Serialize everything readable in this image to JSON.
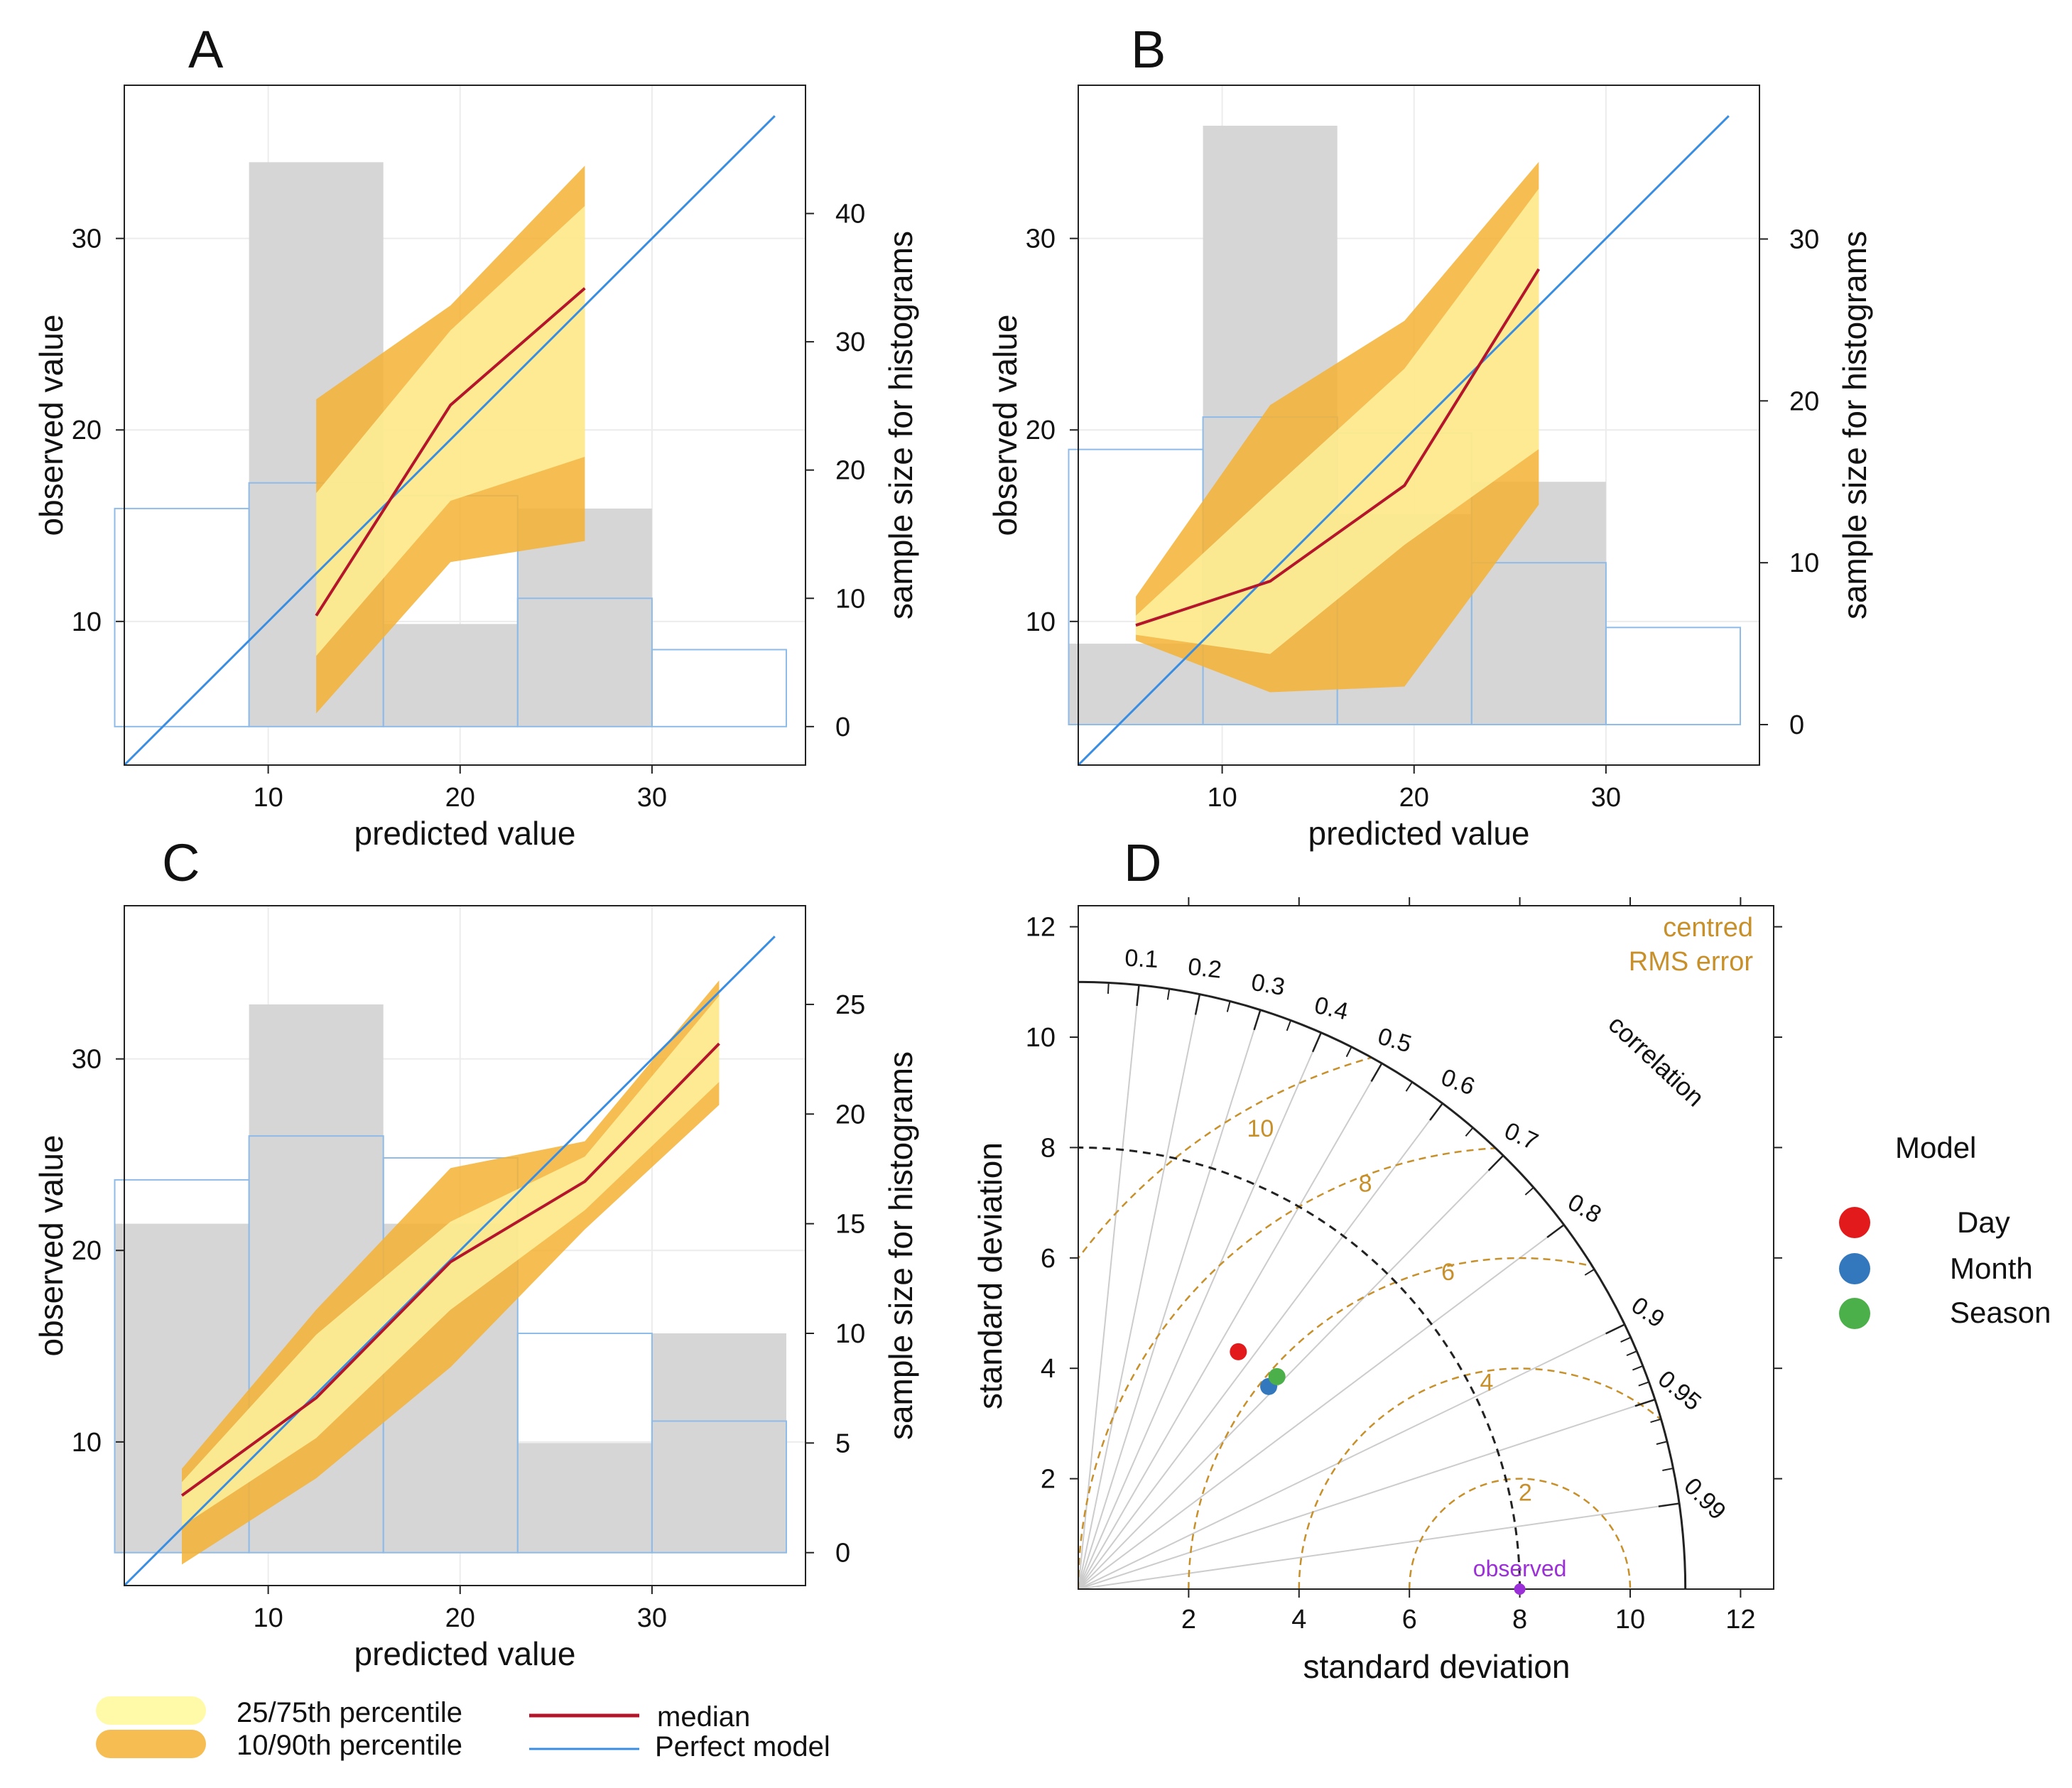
{
  "colors": {
    "band_inner": "#fffaa8",
    "band_outer": "#f5b234",
    "median": "#b5152b",
    "perfect": "#3a8ee2",
    "hist_fill": "#d6d6d6",
    "hist_outline": "#8fbbe8",
    "grid": "#ececec",
    "rms": "#c7902a",
    "correlation_line": "#cccccc",
    "observed": "#9b30d8",
    "day": "#e31a1c",
    "month": "#3378bd",
    "season": "#4cb04a"
  },
  "chart_data": [
    {
      "panel": "A",
      "type": "area",
      "xlabel": "predicted value",
      "ylabel": "observed value",
      "y2label": "sample size for histograms",
      "xlim": [
        2.5,
        38
      ],
      "ylim": [
        2.5,
        38
      ],
      "xticks": [
        10,
        20,
        30
      ],
      "yticks": [
        10,
        20,
        30
      ],
      "y2ticks": [
        0,
        10,
        20,
        30,
        40
      ],
      "y2lim": [
        -3,
        50
      ],
      "bins": [
        2,
        9,
        16,
        23,
        30,
        37
      ],
      "hist_grey": [
        0,
        44,
        8,
        17,
        0
      ],
      "hist_outline": [
        17,
        19,
        18,
        10,
        6
      ],
      "x": [
        12.5,
        19.5,
        26.5
      ],
      "p10": [
        5.2,
        13.1,
        14.2
      ],
      "p25": [
        8.2,
        16.3,
        18.6
      ],
      "median": [
        10.3,
        21.3,
        27.4
      ],
      "p75": [
        16.7,
        25.2,
        31.7
      ],
      "p90": [
        21.6,
        26.5,
        33.8
      ],
      "perfect_model": [
        2.5,
        36.4
      ]
    },
    {
      "panel": "B",
      "type": "area",
      "xlabel": "predicted value",
      "ylabel": "observed value",
      "y2label": "sample size for histograms",
      "xlim": [
        2.5,
        38
      ],
      "ylim": [
        2.5,
        38
      ],
      "xticks": [
        10,
        20,
        30
      ],
      "yticks": [
        10,
        20,
        30
      ],
      "y2ticks": [
        0,
        10,
        20,
        30
      ],
      "y2lim": [
        -2.5,
        39.5
      ],
      "bins": [
        2,
        9,
        16,
        23,
        30,
        37
      ],
      "hist_grey": [
        5,
        37,
        13,
        15,
        0
      ],
      "hist_outline": [
        17,
        19,
        18,
        10,
        6
      ],
      "x": [
        5.5,
        12.5,
        19.5,
        26.5
      ],
      "p10": [
        9.0,
        6.3,
        6.6,
        16.1
      ],
      "p25": [
        9.3,
        8.3,
        14.0,
        19.0
      ],
      "median": [
        9.8,
        12.1,
        17.1,
        28.4
      ],
      "p75": [
        10.3,
        16.8,
        23.2,
        32.6
      ],
      "p90": [
        11.3,
        21.3,
        25.7,
        34.0
      ],
      "perfect_model": [
        2.5,
        36.4
      ]
    },
    {
      "panel": "C",
      "type": "area",
      "xlabel": "predicted value",
      "ylabel": "observed value",
      "y2label": "sample size for histograms",
      "xlim": [
        2.5,
        38
      ],
      "ylim": [
        2.5,
        38
      ],
      "xticks": [
        10,
        20,
        30
      ],
      "yticks": [
        10,
        20,
        30
      ],
      "y2ticks": [
        0,
        5,
        10,
        15,
        20,
        25
      ],
      "y2lim": [
        -1.5,
        29.5
      ],
      "bins": [
        2,
        9,
        16,
        23,
        30,
        37
      ],
      "hist_grey": [
        15,
        25,
        15,
        5,
        10
      ],
      "hist_outline": [
        17,
        19,
        18,
        10,
        6
      ],
      "x": [
        5.5,
        12.5,
        19.5,
        26.5,
        33.5
      ],
      "p10": [
        3.6,
        8.1,
        13.9,
        21.1,
        27.6
      ],
      "p25": [
        5.6,
        10.2,
        16.9,
        22.1,
        28.8
      ],
      "median": [
        7.2,
        12.3,
        19.4,
        23.6,
        30.8
      ],
      "p75": [
        7.9,
        15.6,
        21.5,
        24.9,
        33.3
      ],
      "p90": [
        8.6,
        16.9,
        24.3,
        25.7,
        34.1
      ],
      "perfect_model": [
        2.5,
        36.4
      ]
    },
    {
      "panel": "D",
      "type": "scatter",
      "subtype": "taylor-diagram",
      "xlabel": "standard deviation",
      "ylabel": "standard deviation",
      "xlim": [
        0,
        12.6
      ],
      "ylim": [
        0,
        12.3
      ],
      "xticks": [
        2,
        4,
        6,
        8,
        10,
        12
      ],
      "yticks": [
        2,
        4,
        6,
        8,
        10,
        12
      ],
      "max_sd": 11,
      "observed_sd": 8,
      "correlation_labels": [
        "0.1",
        "0.2",
        "0.3",
        "0.4",
        "0.5",
        "0.6",
        "0.7",
        "0.8",
        "0.9",
        "0.95",
        "0.99"
      ],
      "correlation_lines": [
        0.1,
        0.2,
        0.3,
        0.4,
        0.5,
        0.6,
        0.7,
        0.8,
        0.9,
        0.95,
        0.99
      ],
      "rms_contours": [
        2,
        4,
        6,
        8,
        10
      ],
      "rms_labels": [
        "2",
        "4",
        "6",
        "8",
        "10"
      ],
      "points": [
        {
          "name": "Day",
          "x": 2.9,
          "y": 4.3
        },
        {
          "name": "Month",
          "x": 3.45,
          "y": 3.67
        },
        {
          "name": "Season",
          "x": 3.6,
          "y": 3.85
        }
      ]
    }
  ],
  "panels": {
    "a": "A",
    "b": "B",
    "c": "C",
    "d": "D"
  },
  "taylor": {
    "rms_title_1": "centred",
    "rms_title_2": "RMS error",
    "correlation_title": "correlation",
    "observed_label": "observed",
    "legend_title": "Model"
  },
  "legend": {
    "p25_75": "25/75th percentile",
    "p10_90": "10/90th percentile",
    "median": "median",
    "perfect": "Perfect model"
  }
}
